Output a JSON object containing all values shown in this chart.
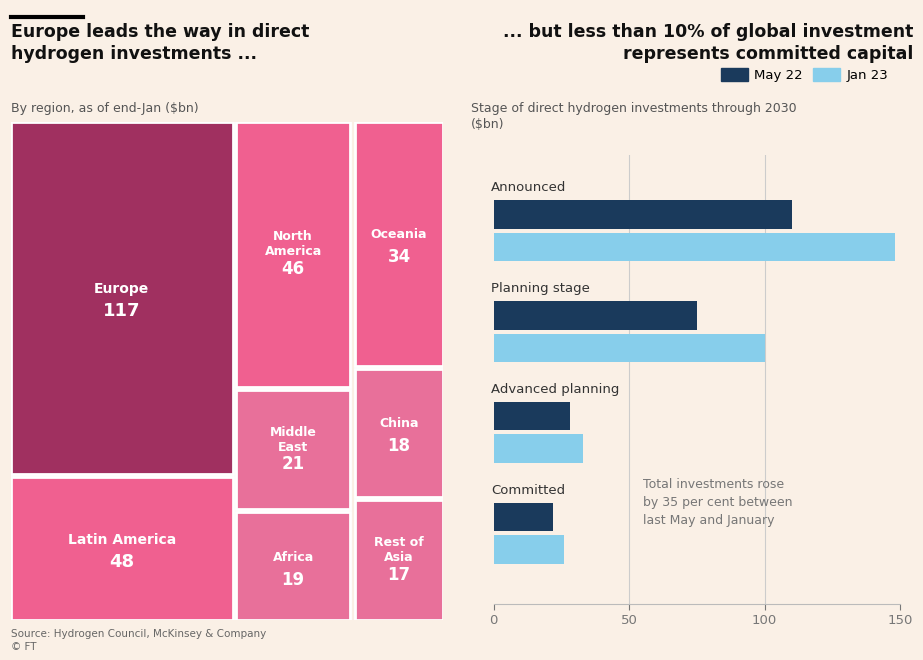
{
  "bg_color": "#faf0e6",
  "left_title": "Europe leads the way in direct\nhydrogen investments ...",
  "left_subtitle": "By region, as of end-Jan ($bn)",
  "right_title": "... but less than 10% of global investment\nrepresents committed capital",
  "right_subtitle": "Stage of direct hydrogen investments through 2030\n($bn)",
  "source": "Source: Hydrogen Council, McKinsey & Company\n© FT",
  "treemap_colors": {
    "europe": "#a03060",
    "bright_pink": "#f06090",
    "mid_pink": "#e8709a"
  },
  "treemap_boxes": [
    {
      "label": "Europe",
      "value": "117",
      "col": 1,
      "row_order": 2
    },
    {
      "label": "Latin America",
      "value": "48",
      "col": 1,
      "row_order": 1
    },
    {
      "label": "North\nAmerica",
      "value": "46",
      "col": 2,
      "row_order": 3
    },
    {
      "label": "Middle\nEast",
      "value": "21",
      "col": 2,
      "row_order": 2
    },
    {
      "label": "Africa",
      "value": "19",
      "col": 2,
      "row_order": 1
    },
    {
      "label": "Oceania",
      "value": "34",
      "col": 3,
      "row_order": 3
    },
    {
      "label": "China",
      "value": "18",
      "col": 3,
      "row_order": 2
    },
    {
      "label": "Rest of\nAsia",
      "value": "17",
      "col": 3,
      "row_order": 1
    }
  ],
  "barchart": {
    "categories": [
      "Announced",
      "Planning stage",
      "Advanced planning",
      "Committed"
    ],
    "may22": [
      110,
      75,
      28,
      22
    ],
    "jan23": [
      148,
      100,
      33,
      26
    ],
    "may22_color": "#1a3a5c",
    "jan23_color": "#87ceeb",
    "annotation": "Total investments rose\nby 35 per cent between\nlast May and January",
    "xlim": [
      0,
      150
    ],
    "xticks": [
      0,
      50,
      100,
      150
    ]
  },
  "legend": {
    "may22_label": "May 22",
    "jan23_label": "Jan 23"
  }
}
